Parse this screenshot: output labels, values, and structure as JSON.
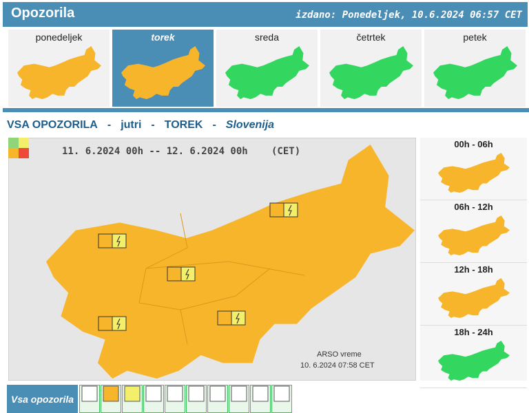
{
  "header": {
    "title": "Opozorila",
    "issued": "izdano: Ponedeljek, 10.6.2024 06:57 CET"
  },
  "days": [
    {
      "label": "ponedeljek",
      "color": "#f7b52c"
    },
    {
      "label": "torek",
      "color": "#f7b52c",
      "selected": true
    },
    {
      "label": "sreda",
      "color": "#33d65f"
    },
    {
      "label": "četrtek",
      "color": "#33d65f"
    },
    {
      "label": "petek",
      "color": "#33d65f"
    }
  ],
  "banner": {
    "title": "VSA OPOZORILA",
    "sep1": "-",
    "when": "jutri",
    "sep2": "-",
    "day": "TOREK",
    "sep3": "-",
    "region": "Slovenija"
  },
  "map": {
    "period": "11. 6.2024 00h -- 12. 6.2024 00h",
    "timezone": "(CET)",
    "color": "#f7b52c",
    "source": "ARSO vreme",
    "timestamp": "10. 6.2024 07:58 CET"
  },
  "periods": [
    {
      "label": "00h - 06h",
      "color": "#f7b52c"
    },
    {
      "label": "06h - 12h",
      "color": "#f7b52c"
    },
    {
      "label": "12h - 18h",
      "color": "#f7b52c"
    },
    {
      "label": "18h - 24h",
      "color": "#33d65f"
    }
  ],
  "tabs": {
    "all": "Vsa opozorila"
  }
}
